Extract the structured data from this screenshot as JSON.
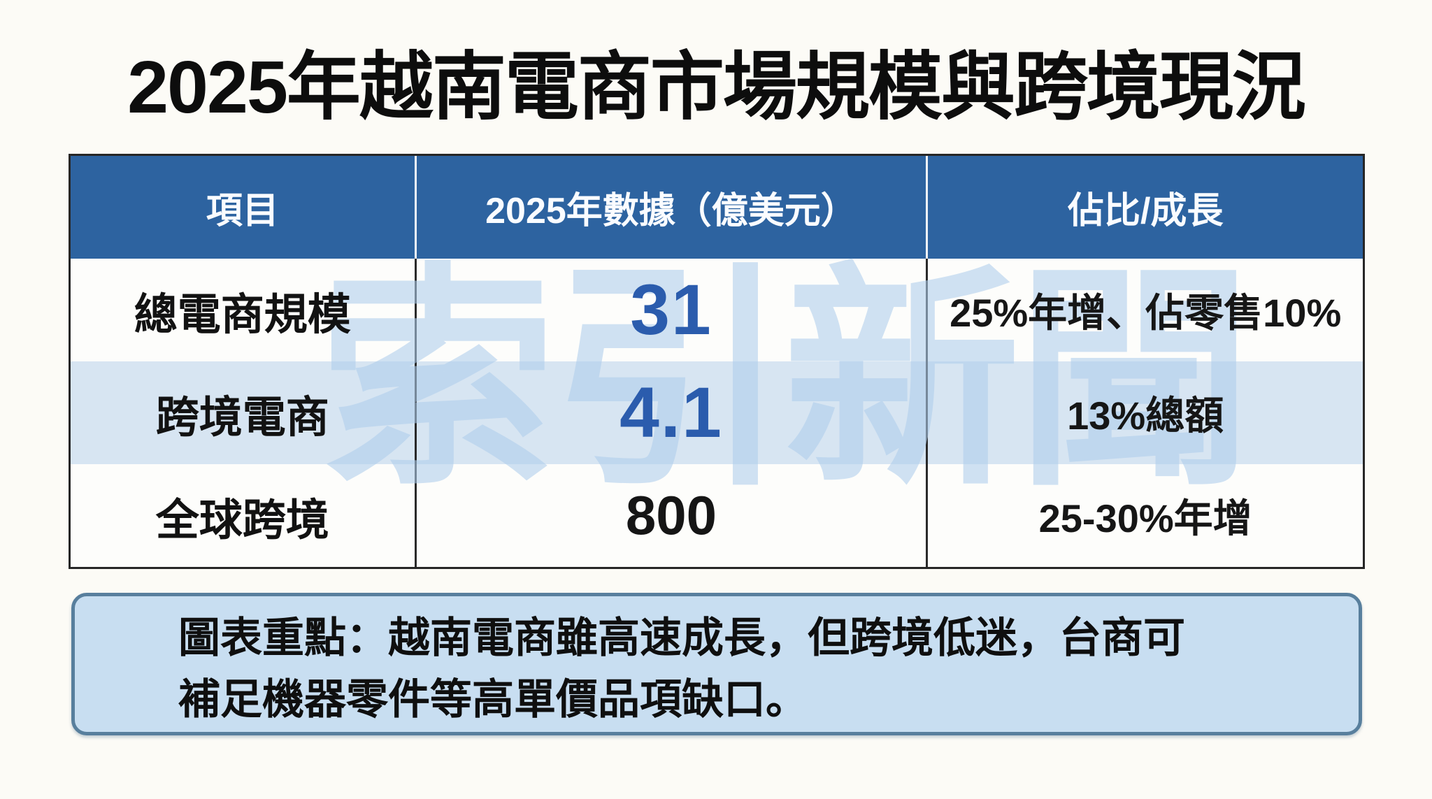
{
  "chart_data": {
    "type": "table",
    "title": "2025年越南電商市場規模與跨境現況",
    "columns": [
      "項目",
      "2025年數據（億美元）",
      "佔比/成長"
    ],
    "rows": [
      [
        "總電商規模",
        "31",
        "25%年增、佔零售10%"
      ],
      [
        "跨境電商",
        "4.1",
        "13%總額"
      ],
      [
        "全球跨境",
        "800",
        "25-30%年增"
      ]
    ],
    "note": "圖表重點：越南電商雖高速成長，但跨境低迷，台商可補足機器零件等高單價品項缺口。",
    "layout_hints": {
      "header_position": "top",
      "grid": "on",
      "value_emphasis": [
        "31 and 4.1 rendered large in blue",
        "800 rendered large in black"
      ],
      "alternating_row_shading": true
    }
  },
  "watermark": {
    "text": "索引新聞"
  },
  "summary": {
    "line1": "圖表重點：越南電商雖高速成長，但跨境低迷，台商可",
    "line2": "補足機器零件等高單價品項缺口。"
  },
  "colors": {
    "page_background": "#fcfbf6",
    "header_background": "#2d63a0",
    "header_text": "#fafcff",
    "row_alt_background": "#d7e5f2",
    "row_background": "#fdfdfb",
    "grid_border": "#2a2a2a",
    "value_blue": "#2b5cad",
    "summary_background": "#c8def1",
    "summary_border": "#587f9d",
    "watermark_blue": "#cfe3f5"
  }
}
